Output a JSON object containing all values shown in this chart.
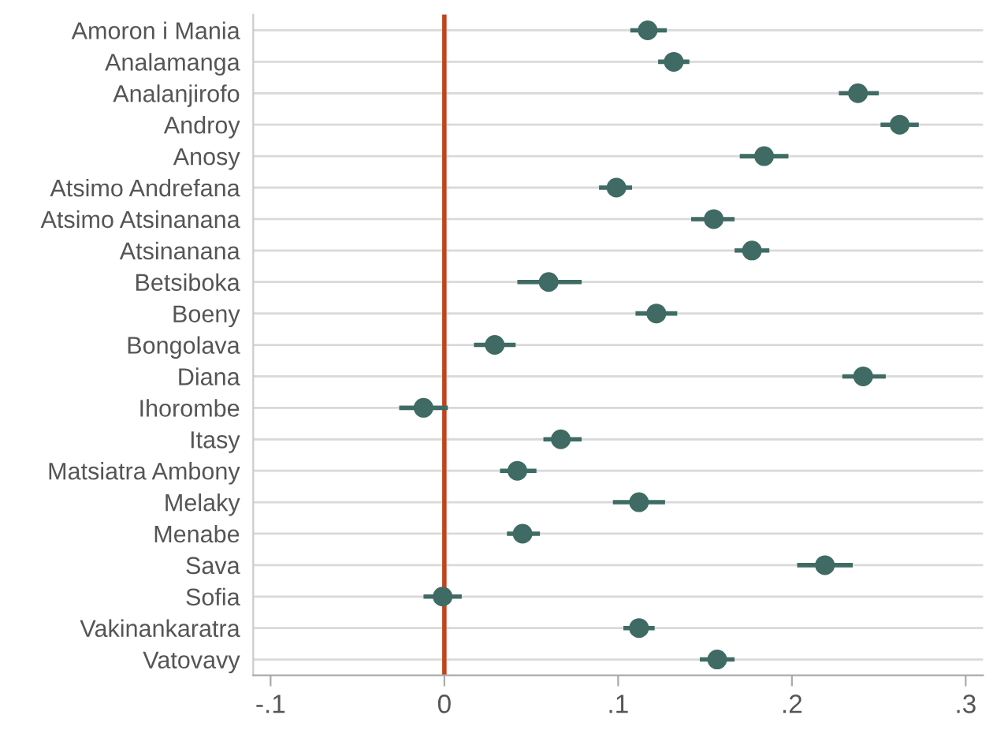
{
  "chart_data": {
    "type": "scatter",
    "orientation": "horizontal",
    "categories": [
      "Amoron i Mania",
      "Analamanga",
      "Analanjirofo",
      "Androy",
      "Anosy",
      "Atsimo Andrefana",
      "Atsimo Atsinanana",
      "Atsinanana",
      "Betsiboka",
      "Boeny",
      "Bongolava",
      "Diana",
      "Ihorombe",
      "Itasy",
      "Matsiatra Ambony",
      "Melaky",
      "Menabe",
      "Sava",
      "Sofia",
      "Vakinankaratra",
      "Vatovavy"
    ],
    "values": [
      0.117,
      0.132,
      0.238,
      0.262,
      0.184,
      0.099,
      0.155,
      0.177,
      0.06,
      0.122,
      0.029,
      0.241,
      -0.012,
      0.067,
      0.042,
      0.112,
      0.045,
      0.219,
      -0.001,
      0.112,
      0.157
    ],
    "errors": [
      [
        0.107,
        0.128
      ],
      [
        0.123,
        0.141
      ],
      [
        0.227,
        0.25
      ],
      [
        0.251,
        0.273
      ],
      [
        0.17,
        0.198
      ],
      [
        0.089,
        0.108
      ],
      [
        0.142,
        0.167
      ],
      [
        0.167,
        0.187
      ],
      [
        0.042,
        0.079
      ],
      [
        0.11,
        0.134
      ],
      [
        0.017,
        0.041
      ],
      [
        0.229,
        0.254
      ],
      [
        -0.026,
        0.002
      ],
      [
        0.057,
        0.079
      ],
      [
        0.032,
        0.053
      ],
      [
        0.097,
        0.127
      ],
      [
        0.036,
        0.055
      ],
      [
        0.203,
        0.235
      ],
      [
        -0.012,
        0.01
      ],
      [
        0.103,
        0.121
      ],
      [
        0.147,
        0.167
      ]
    ],
    "color": "#3f6b64",
    "marker": "circle",
    "xlim": [
      -0.11,
      0.31
    ],
    "xticks": [
      {
        "value": -0.1,
        "label": "-.1"
      },
      0,
      {
        "value": 0.1,
        "label": ".1"
      },
      {
        "value": 0.2,
        "label": ".2"
      },
      {
        "value": 0.3,
        "label": ".3"
      }
    ],
    "ref_lines": [
      {
        "axis": "x",
        "value": 0,
        "color": "#c0441c"
      }
    ],
    "grid": "y"
  }
}
